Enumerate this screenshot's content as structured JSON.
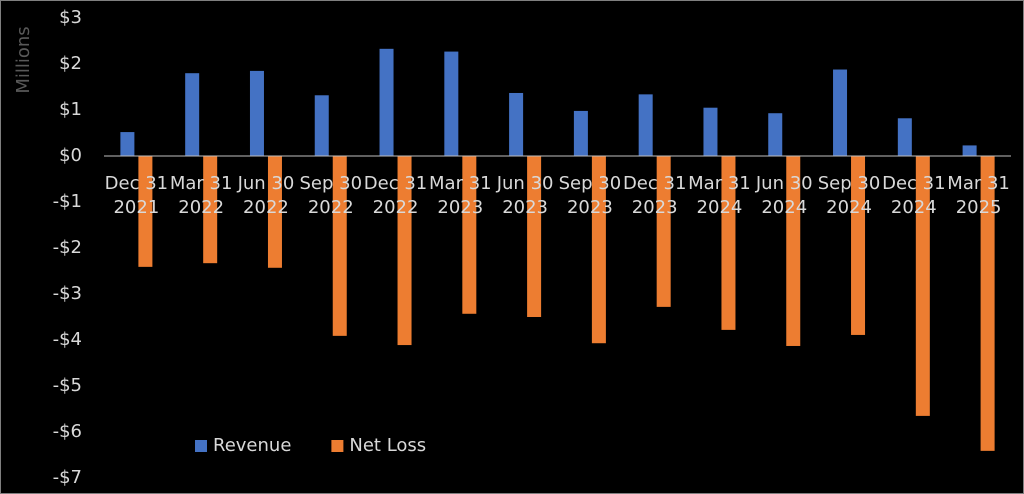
{
  "chart_data": {
    "type": "bar",
    "y_label": "Millions",
    "categories": [
      [
        "Dec 31",
        "2021"
      ],
      [
        "Mar 31",
        "2022"
      ],
      [
        "Jun 30",
        "2022"
      ],
      [
        "Sep 30",
        "2022"
      ],
      [
        "Dec 31",
        "2022"
      ],
      [
        "Mar 31",
        "2023"
      ],
      [
        "Jun 30",
        "2023"
      ],
      [
        "Sep 30",
        "2023"
      ],
      [
        "Dec 31",
        "2023"
      ],
      [
        "Mar 31",
        "2024"
      ],
      [
        "Jun 30",
        "2024"
      ],
      [
        "Sep 30",
        "2024"
      ],
      [
        "Dec 31",
        "2024"
      ],
      [
        "Mar 31",
        "2025"
      ]
    ],
    "series": [
      {
        "name": "Revenue",
        "color": "#4472c4",
        "values": [
          0.52,
          1.8,
          1.85,
          1.32,
          2.33,
          2.27,
          1.37,
          0.98,
          1.34,
          1.05,
          0.93,
          1.88,
          0.82,
          0.23
        ]
      },
      {
        "name": "Net Loss",
        "color": "#ed7d31",
        "values": [
          -2.41,
          -2.33,
          -2.43,
          -3.91,
          -4.11,
          -3.43,
          -3.5,
          -4.07,
          -3.28,
          -3.78,
          -4.13,
          -3.89,
          -5.65,
          -6.41
        ]
      }
    ],
    "ylim": [
      -7,
      3
    ],
    "yticks": [
      {
        "value": 3,
        "label": "$3"
      },
      {
        "value": 2,
        "label": "$2"
      },
      {
        "value": 1,
        "label": "$1"
      },
      {
        "value": 0,
        "label": "$0"
      },
      {
        "value": -1,
        "label": "-$1"
      },
      {
        "value": -2,
        "label": "-$2"
      },
      {
        "value": -3,
        "label": "-$3"
      },
      {
        "value": -4,
        "label": "-$4"
      },
      {
        "value": -5,
        "label": "-$5"
      },
      {
        "value": -6,
        "label": "-$6"
      },
      {
        "value": -7,
        "label": "-$7"
      }
    ],
    "grid": false,
    "legend": "lower left"
  }
}
